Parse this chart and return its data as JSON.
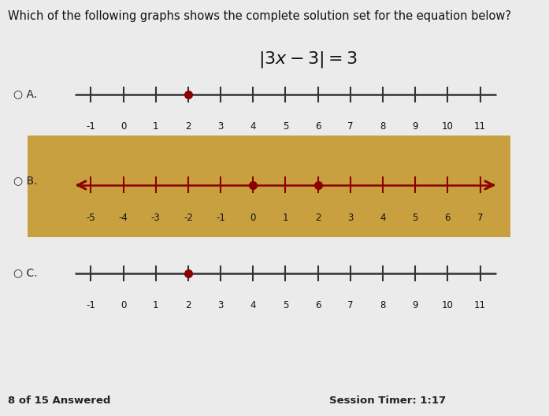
{
  "title": "Which of the following graphs shows the complete solution set for the equation below?",
  "equation_parts": [
    "|3x − 3| = 3"
  ],
  "background_color": "#ebebeb",
  "highlighted_bg": "#c8a040",
  "option_A": {
    "label": "A.",
    "xmin": -1,
    "xmax": 11,
    "ticks": [
      -1,
      0,
      1,
      2,
      3,
      4,
      5,
      6,
      7,
      8,
      9,
      10,
      11
    ],
    "dots": [
      2
    ],
    "dot_color": "#8B0000",
    "line_color": "#333333",
    "has_arrows": false
  },
  "option_B": {
    "label": "B.",
    "xmin": -5,
    "xmax": 7,
    "ticks": [
      -5,
      -4,
      -3,
      -2,
      -1,
      0,
      1,
      2,
      3,
      4,
      5,
      6,
      7
    ],
    "dots": [
      0,
      2
    ],
    "dot_color": "#8B0000",
    "line_color": "#8B0000",
    "has_arrows": true
  },
  "option_C": {
    "label": "C.",
    "xmin": -1,
    "xmax": 11,
    "ticks": [
      -1,
      0,
      1,
      2,
      3,
      4,
      5,
      6,
      7,
      8,
      9,
      10,
      11
    ],
    "dots": [
      2
    ],
    "dot_color": "#8B0000",
    "line_color": "#333333",
    "has_arrows": false
  },
  "footer_left": "8 of 15 Answered",
  "footer_right": "Session Timer: 1:17"
}
